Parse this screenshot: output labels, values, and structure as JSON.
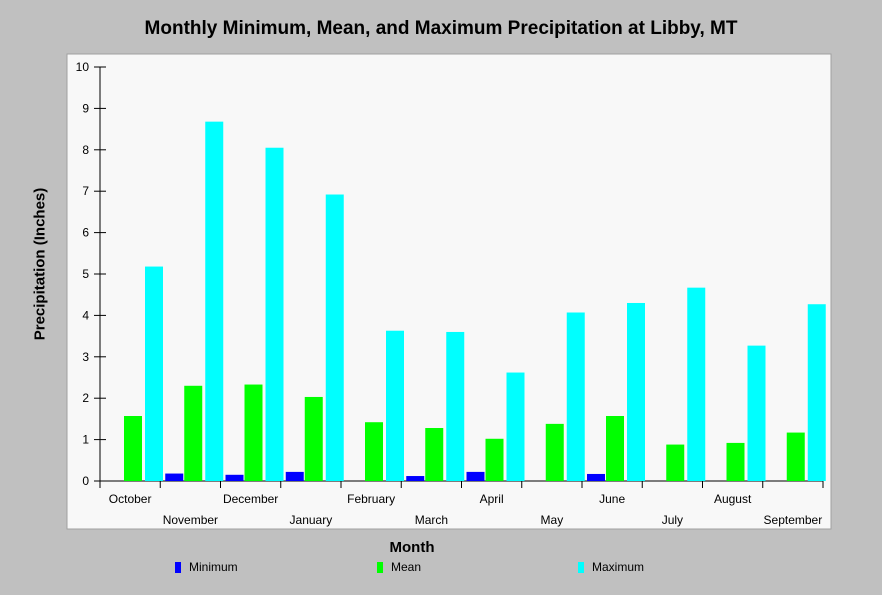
{
  "chart_data": {
    "type": "bar",
    "title": "Monthly Minimum, Mean, and Maximum Precipitation at Libby, MT",
    "xlabel": "Month",
    "ylabel": "Precipitation (Inches)",
    "ylim": [
      0,
      10
    ],
    "yticks": [
      "0",
      "1",
      "2",
      "3",
      "4",
      "5",
      "6",
      "7",
      "8",
      "9",
      "10"
    ],
    "grid": false,
    "legend_position": "bottom",
    "categories": [
      "October",
      "November",
      "December",
      "January",
      "February",
      "March",
      "April",
      "May",
      "June",
      "July",
      "August",
      "September"
    ],
    "series": [
      {
        "name": "Minimum",
        "color": "#0000ff",
        "values": [
          0.0,
          0.18,
          0.15,
          0.22,
          0.0,
          0.12,
          0.22,
          0.0,
          0.17,
          0.0,
          0.0,
          0.0
        ]
      },
      {
        "name": "Mean",
        "color": "#00ff00",
        "values": [
          1.57,
          2.3,
          2.33,
          2.03,
          1.42,
          1.28,
          1.02,
          1.38,
          1.57,
          0.88,
          0.92,
          1.17
        ]
      },
      {
        "name": "Maximum",
        "color": "#00ffff",
        "values": [
          5.18,
          8.68,
          8.05,
          6.92,
          3.63,
          3.6,
          2.62,
          4.07,
          4.3,
          4.67,
          3.27,
          4.27
        ]
      }
    ]
  }
}
